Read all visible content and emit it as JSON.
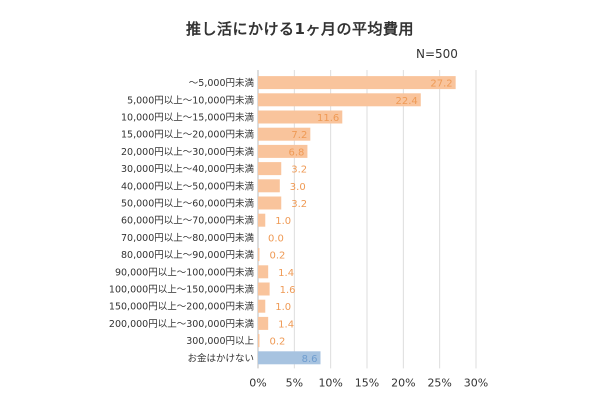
{
  "chart_data": {
    "type": "bar",
    "orientation": "horizontal",
    "title": "推し活にかける1ヶ月の平均費用",
    "note": "N=500",
    "categories": [
      "～5,000円未満",
      "5,000円以上～10,000円未満",
      "10,000円以上～15,000円未満",
      "15,000円以上～20,000円未満",
      "20,000円以上～30,000円未満",
      "30,000円以上～40,000円未満",
      "40,000円以上～50,000円未満",
      "50,000円以上～60,000円未満",
      "60,000円以上～70,000円未満",
      "70,000円以上～80,000円未満",
      "80,000円以上～90,000円未満",
      "90,000円以上～100,000円未満",
      "100,000円以上～150,000円未満",
      "150,000円以上～200,000円未満",
      "200,000円以上～300,000円未満",
      "300,000円以上",
      "お金はかけない"
    ],
    "values": [
      27.2,
      22.4,
      11.6,
      7.2,
      6.8,
      3.2,
      3.0,
      3.2,
      1.0,
      0.0,
      0.2,
      1.4,
      1.6,
      1.0,
      1.4,
      0.2,
      8.6
    ],
    "value_labels": [
      "27.2",
      "22.4",
      "11.6",
      "7.2",
      "6.8",
      "3.2",
      "3.0",
      "3.2",
      "1.0",
      "0.0",
      "0.2",
      "1.4",
      "1.6",
      "1.0",
      "1.4",
      "0.2",
      "8.6"
    ],
    "xlim": [
      0,
      30
    ],
    "xticks": [
      "0%",
      "5%",
      "10%",
      "15%",
      "20%",
      "25%",
      "30%"
    ],
    "grid": "vertical",
    "colors": {
      "bar": "#f9c49c",
      "highlight_bar": "#a7c3e0",
      "label": "#ef9a55",
      "highlight_label": "#6f9dcf",
      "grid": "#dddddd"
    },
    "highlight_index": 16
  }
}
